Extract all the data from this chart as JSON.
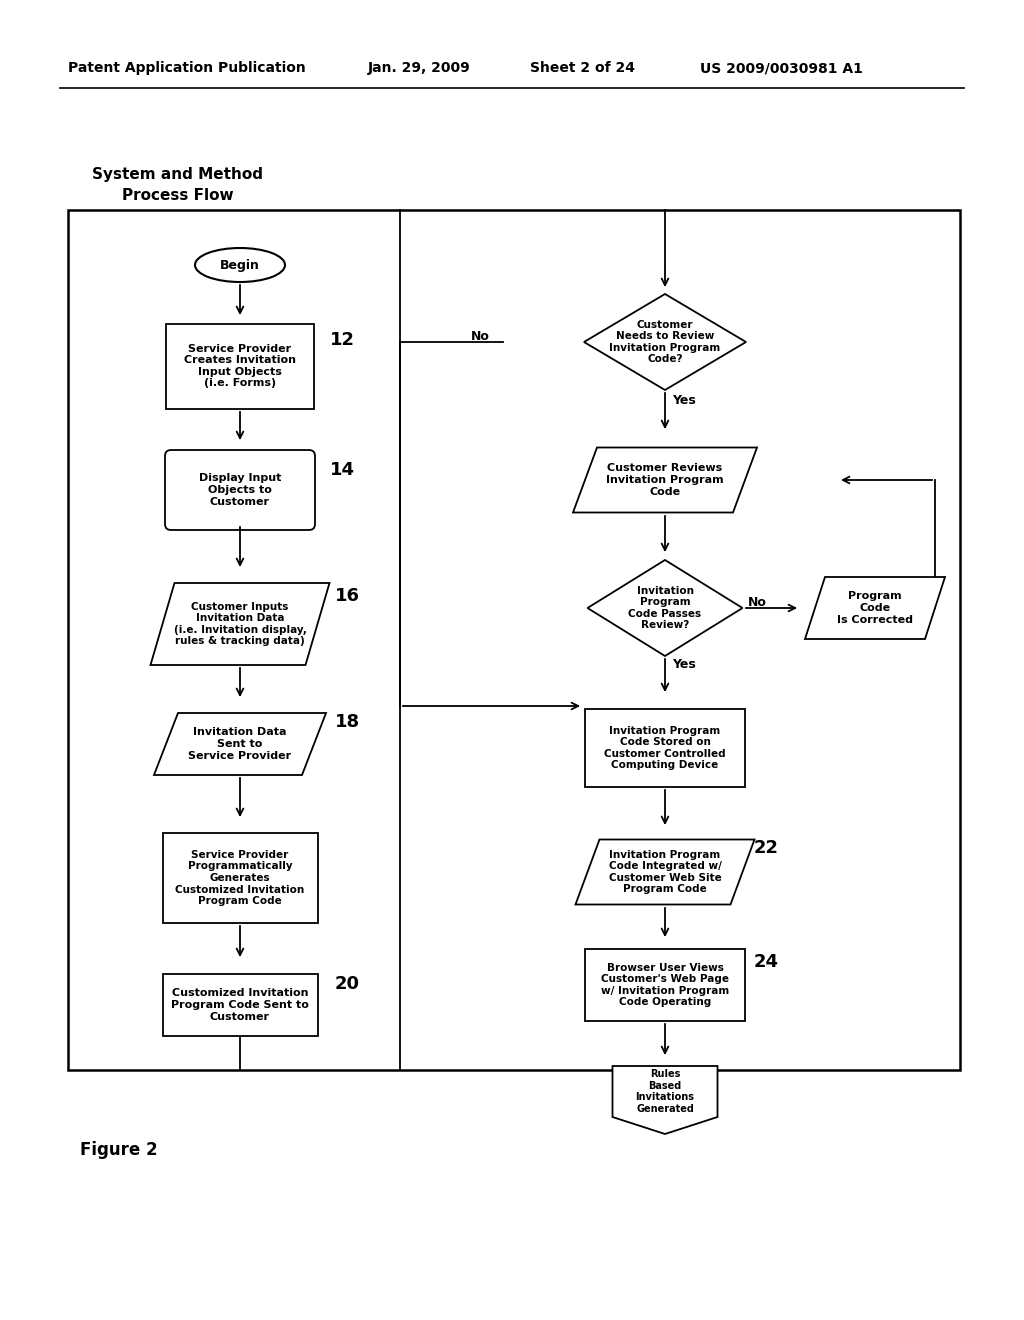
{
  "bg_color": "#ffffff",
  "header_text": "Patent Application Publication",
  "header_date": "Jan. 29, 2009",
  "header_sheet": "Sheet 2 of 24",
  "header_patent": "US 2009/0030981 A1",
  "title_line1": "System and Method",
  "title_line2": "Process Flow",
  "figure_label": "Figure 2"
}
